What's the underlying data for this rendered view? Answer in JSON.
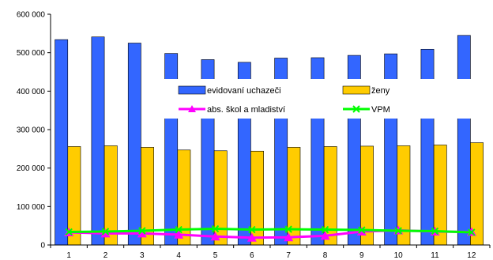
{
  "chart_data": {
    "type": "bar",
    "categories": [
      "1",
      "2",
      "3",
      "4",
      "5",
      "6",
      "7",
      "8",
      "9",
      "10",
      "11",
      "12"
    ],
    "series": [
      {
        "name": "evidovaní uchazeči",
        "kind": "bar",
        "color": "#3366ff",
        "values": [
          534000,
          541000,
          525000,
          498000,
          482000,
          475000,
          486000,
          487000,
          493000,
          497000,
          509000,
          545000
        ]
      },
      {
        "name": "ženy",
        "kind": "bar",
        "color": "#ffcc00",
        "values": [
          256000,
          258000,
          254000,
          247000,
          245000,
          244000,
          254000,
          256000,
          257000,
          258000,
          260000,
          266000
        ]
      },
      {
        "name": "abs. škol a mladiství",
        "kind": "line",
        "color": "#ff00ff",
        "marker": "triangle",
        "values": [
          33000,
          30000,
          30000,
          27000,
          22000,
          19000,
          20000,
          24000,
          35000,
          38000,
          35000,
          34000
        ]
      },
      {
        "name": "VPM",
        "kind": "line",
        "color": "#00ff00",
        "marker": "x",
        "values": [
          34000,
          35000,
          37000,
          40000,
          42000,
          40000,
          41000,
          40000,
          39000,
          37000,
          36000,
          33000
        ]
      }
    ],
    "ylim": [
      0,
      600000
    ],
    "yticks": [
      "0",
      "100 000",
      "200 000",
      "300 000",
      "400 000",
      "500 000",
      "600 000"
    ],
    "grid": false,
    "legend_position": "center-right"
  }
}
